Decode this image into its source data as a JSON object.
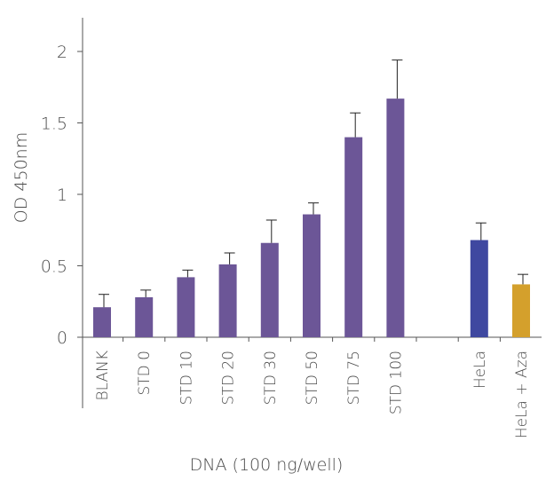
{
  "chart_data": {
    "type": "bar",
    "title": "",
    "xlabel": "DNA (100 ng/well)",
    "ylabel": "OD 450nm",
    "ylim": [
      0,
      2.2
    ],
    "yticks": [
      {
        "value": 0,
        "label": "0"
      },
      {
        "value": 0.5,
        "label": "0.5"
      },
      {
        "value": 1,
        "label": "1"
      },
      {
        "value": 1.5,
        "label": "1.5"
      },
      {
        "value": 2,
        "label": "2"
      }
    ],
    "grid": false,
    "legend": "none",
    "categories": [
      "BLANK",
      "STD 0",
      "STD 10",
      "STD 20",
      "STD 30",
      "STD 50",
      "STD 75",
      "STD 100",
      "",
      "HeLa",
      "HeLa + Aza"
    ],
    "values": [
      0.21,
      0.28,
      0.42,
      0.51,
      0.66,
      0.86,
      1.4,
      1.67,
      null,
      0.68,
      0.37
    ],
    "errors": [
      0.09,
      0.05,
      0.05,
      0.08,
      0.16,
      0.08,
      0.17,
      0.27,
      null,
      0.12,
      0.07
    ],
    "colors": [
      "#6c5697",
      "#6c5697",
      "#6c5697",
      "#6c5697",
      "#6c5697",
      "#6c5697",
      "#6c5697",
      "#6c5697",
      null,
      "#3f48a0",
      "#d4a02c"
    ]
  }
}
